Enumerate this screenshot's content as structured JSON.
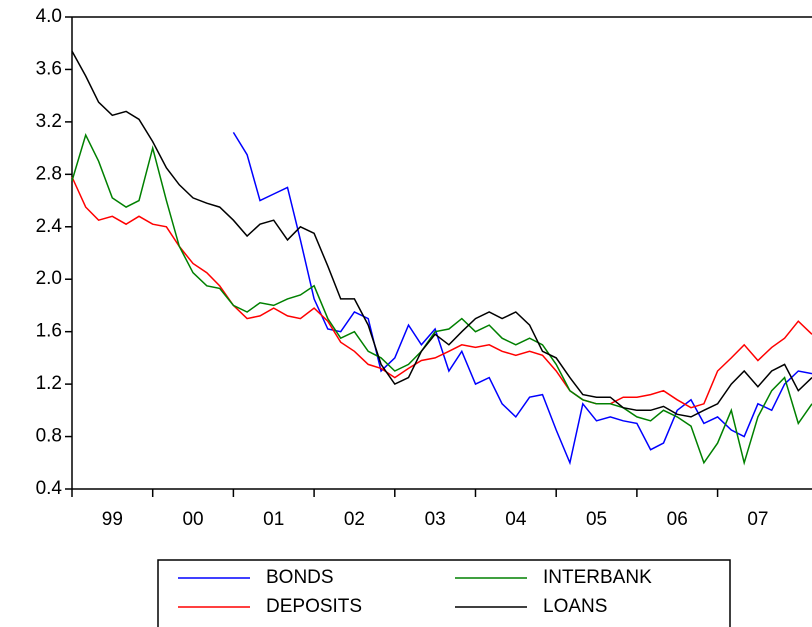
{
  "chart_data": {
    "type": "line",
    "x": [
      1999,
      1999.17,
      1999.33,
      1999.5,
      1999.67,
      1999.83,
      2000,
      2000.17,
      2000.33,
      2000.5,
      2000.67,
      2000.83,
      2001,
      2001.17,
      2001.33,
      2001.5,
      2001.67,
      2001.83,
      2002,
      2002.17,
      2002.33,
      2002.5,
      2002.67,
      2002.83,
      2003,
      2003.17,
      2003.33,
      2003.5,
      2003.67,
      2003.83,
      2004,
      2004.17,
      2004.33,
      2004.5,
      2004.67,
      2004.83,
      2005,
      2005.17,
      2005.33,
      2005.5,
      2005.67,
      2005.83,
      2006,
      2006.17,
      2006.33,
      2006.5,
      2006.67,
      2006.83,
      2007,
      2007.17,
      2007.33,
      2007.5,
      2007.67,
      2007.83,
      2008,
      2008.17
    ],
    "series": [
      {
        "name": "BONDS",
        "color": "#0000ff",
        "values": [
          null,
          null,
          null,
          null,
          null,
          null,
          null,
          null,
          null,
          null,
          null,
          null,
          3.12,
          2.95,
          2.6,
          2.65,
          2.7,
          2.3,
          1.85,
          1.62,
          1.6,
          1.75,
          1.7,
          1.3,
          1.4,
          1.65,
          1.5,
          1.62,
          1.3,
          1.45,
          1.2,
          1.25,
          1.05,
          0.95,
          1.1,
          1.12,
          0.85,
          0.6,
          1.05,
          0.92,
          0.95,
          0.92,
          0.9,
          0.7,
          0.75,
          1.0,
          1.08,
          0.9,
          0.95,
          0.85,
          0.8,
          1.05,
          1.0,
          1.2,
          1.3,
          1.28
        ]
      },
      {
        "name": "DEPOSITS",
        "color": "#ff0000",
        "values": [
          2.78,
          2.55,
          2.45,
          2.48,
          2.42,
          2.48,
          2.42,
          2.4,
          2.25,
          2.12,
          2.05,
          1.95,
          1.8,
          1.7,
          1.72,
          1.78,
          1.72,
          1.7,
          1.78,
          1.68,
          1.52,
          1.45,
          1.35,
          1.32,
          1.25,
          1.32,
          1.38,
          1.4,
          1.45,
          1.5,
          1.48,
          1.5,
          1.45,
          1.42,
          1.45,
          1.42,
          1.3,
          1.15,
          1.08,
          1.05,
          1.05,
          1.1,
          1.1,
          1.12,
          1.15,
          1.08,
          1.02,
          1.05,
          1.3,
          1.4,
          1.5,
          1.38,
          1.48,
          1.55,
          1.68,
          1.58
        ]
      },
      {
        "name": "INTERBANK",
        "color": "#008000",
        "values": [
          2.75,
          3.1,
          2.9,
          2.62,
          2.55,
          2.6,
          3.0,
          2.6,
          2.25,
          2.05,
          1.95,
          1.93,
          1.8,
          1.75,
          1.82,
          1.8,
          1.85,
          1.88,
          1.95,
          1.7,
          1.55,
          1.6,
          1.45,
          1.4,
          1.3,
          1.35,
          1.45,
          1.6,
          1.62,
          1.7,
          1.6,
          1.65,
          1.55,
          1.5,
          1.55,
          1.5,
          1.35,
          1.15,
          1.08,
          1.05,
          1.05,
          1.02,
          0.95,
          0.92,
          1.0,
          0.95,
          0.88,
          0.6,
          0.75,
          1.0,
          0.6,
          0.95,
          1.15,
          1.25,
          0.9,
          1.05
        ]
      },
      {
        "name": "LOANS",
        "color": "#000000",
        "values": [
          3.74,
          3.55,
          3.35,
          3.25,
          3.28,
          3.22,
          3.05,
          2.85,
          2.72,
          2.62,
          2.58,
          2.55,
          2.45,
          2.33,
          2.42,
          2.45,
          2.3,
          2.4,
          2.35,
          2.1,
          1.85,
          1.85,
          1.65,
          1.35,
          1.2,
          1.25,
          1.45,
          1.58,
          1.5,
          1.6,
          1.7,
          1.75,
          1.7,
          1.75,
          1.65,
          1.45,
          1.4,
          1.25,
          1.12,
          1.1,
          1.1,
          1.02,
          1.0,
          1.0,
          1.03,
          0.97,
          0.95,
          1.0,
          1.05,
          1.2,
          1.3,
          1.18,
          1.3,
          1.35,
          1.15,
          1.25
        ]
      }
    ],
    "xlim": [
      1999,
      2008.17
    ],
    "xticks": [
      {
        "value": 1999,
        "label": "99"
      },
      {
        "value": 2000,
        "label": "00"
      },
      {
        "value": 2001,
        "label": "01"
      },
      {
        "value": 2002,
        "label": "02"
      },
      {
        "value": 2003,
        "label": "03"
      },
      {
        "value": 2004,
        "label": "04"
      },
      {
        "value": 2005,
        "label": "05"
      },
      {
        "value": 2006,
        "label": "06"
      },
      {
        "value": 2007,
        "label": "07"
      }
    ],
    "ylim": [
      0.4,
      4.0
    ],
    "yticks": [
      0.4,
      0.8,
      1.2,
      1.6,
      {
        "value": 2,
        "label": "2.0"
      },
      2.4,
      2.8,
      3.2,
      3.6,
      {
        "value": 4,
        "label": "4.0"
      }
    ],
    "grid": false,
    "legend": "bottom"
  }
}
